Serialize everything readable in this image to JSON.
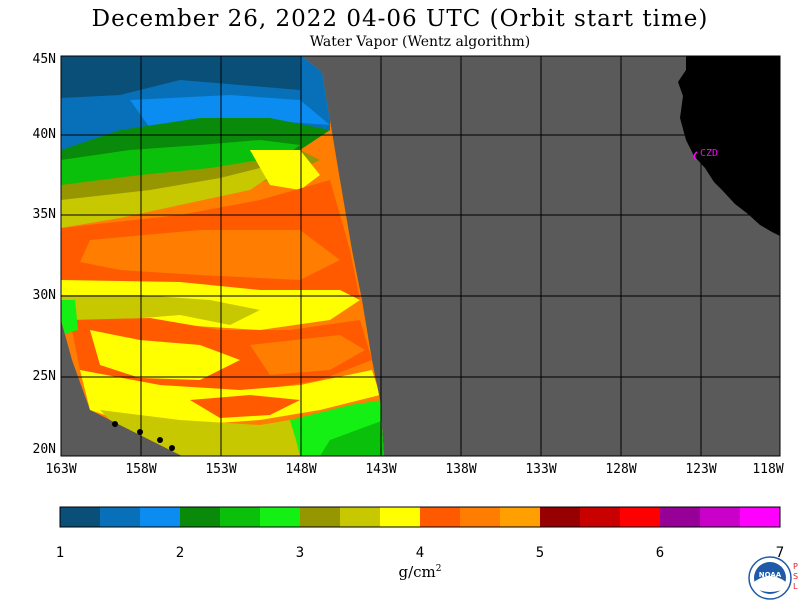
{
  "title": "December 26, 2022  04-06 UTC  (Orbit start time)",
  "subtitle": "Water Vapor (Wentz algorithm)",
  "lat_labels": [
    "45N",
    "40N",
    "35N",
    "30N",
    "25N",
    "20N"
  ],
  "lon_labels": [
    "163W",
    "158W",
    "153W",
    "148W",
    "143W",
    "138W",
    "133W",
    "128W",
    "123W",
    "118W"
  ],
  "station_label": "CZD",
  "colorbar": {
    "ticks": [
      "1",
      "2",
      "3",
      "4",
      "5",
      "6",
      "7"
    ],
    "unit_text": "g/cm",
    "unit_exp": "2",
    "colors": [
      "#0a4f78",
      "#0870b8",
      "#0a8cf0",
      "#0a8a0a",
      "#0ac00a",
      "#14f014",
      "#969600",
      "#c8c800",
      "#ffff00",
      "#ff5a00",
      "#ff7d00",
      "#ffa000",
      "#960000",
      "#c80000",
      "#ff0000",
      "#960096",
      "#c800c8",
      "#ff00ff"
    ]
  },
  "map_colors": {
    "no_data": "#5a5a5a",
    "land": "#000000",
    "grid": "#000000",
    "station": "#ff00ff"
  },
  "logo": {
    "text": "NOAA",
    "side_text": "PSL"
  }
}
